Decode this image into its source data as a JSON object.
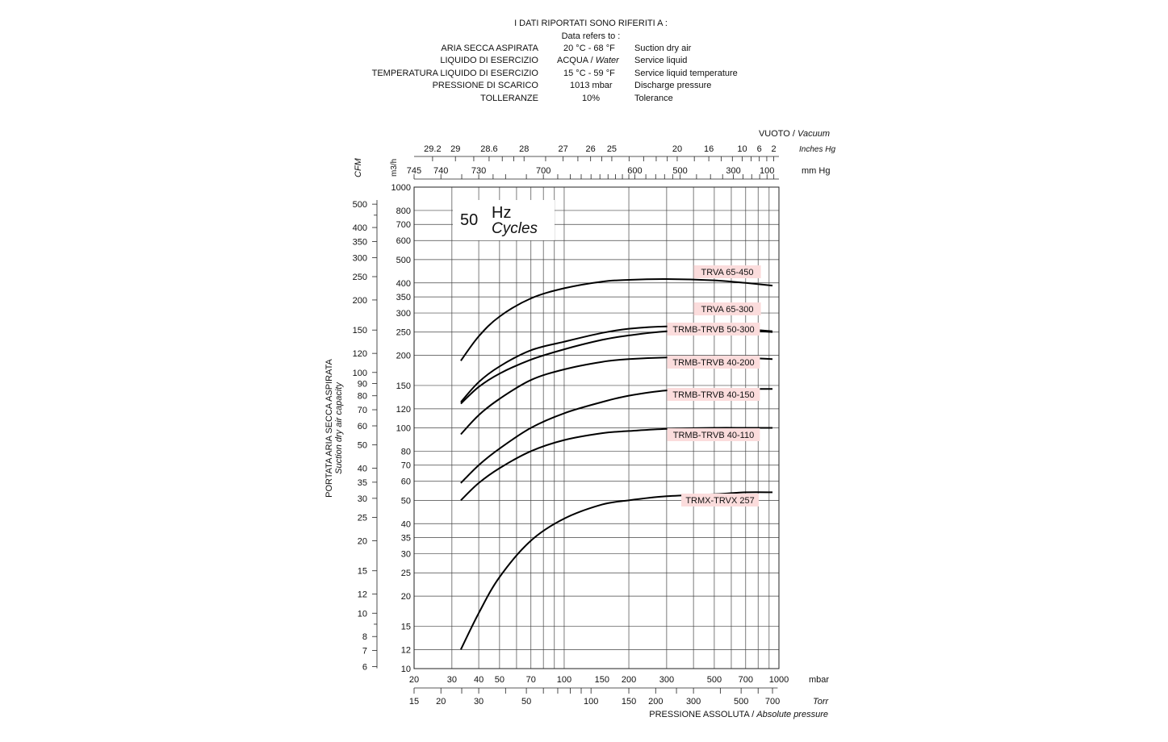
{
  "header": {
    "title": "I DATI RIPORTATI SONO RIFERITI A :",
    "subtitle": "Data refers to :",
    "rows": [
      {
        "it": "ARIA SECCA ASPIRATA",
        "value": "20 °C - 68 °F",
        "value_it": "",
        "en": "Suction dry air"
      },
      {
        "it": "LIQUIDO DI ESERCIZIO",
        "value": "ACQUA /",
        "value_it": "Water",
        "en": "Service liquid"
      },
      {
        "it": "TEMPERATURA LIQUIDO DI ESERCIZIO",
        "value": "15 °C - 59 °F",
        "value_it": "",
        "en": "Service liquid temperature"
      },
      {
        "it": "PRESSIONE DI SCARICO",
        "value": "1013 mbar",
        "value_it": "",
        "en": "Discharge pressure"
      },
      {
        "it": "TOLLERANZE",
        "value": "10%",
        "value_it": "",
        "en": "Tolerance"
      }
    ]
  },
  "chart_data": {
    "type": "line",
    "freq_number": "50",
    "freq_unit": "Hz",
    "freq_unit_en": "Cycles",
    "x_axis_mbar": {
      "unit": "mbar",
      "scale": "log",
      "range": [
        20,
        1000
      ],
      "labels": [
        "20",
        "30",
        "40",
        "50",
        "70",
        "100",
        "150",
        "200",
        "300",
        "500",
        "700",
        "1000"
      ]
    },
    "x_axis_torr": {
      "unit": "Torr",
      "labels": [
        "15",
        "20",
        "30",
        "50",
        "100",
        "150",
        "200",
        "300",
        "500",
        "700"
      ]
    },
    "x_title": "PRESSIONE ASSOLUTA /",
    "x_title_en": "Absolute pressure",
    "top_axis_mmhg": {
      "unit": "mm Hg",
      "labels": [
        "745",
        "740",
        "730",
        "700",
        "600",
        "500",
        "300",
        "100"
      ]
    },
    "top_axis_inhg": {
      "unit": "Inches Hg",
      "labels": [
        "29.2",
        "29",
        "28.6",
        "28",
        "27",
        "26",
        "25",
        "20",
        "16",
        "10",
        "6",
        "2"
      ]
    },
    "top_title": "VUOTO /",
    "top_title_en": "Vacuum",
    "y_axis_m3h": {
      "unit": "m3/h",
      "scale": "log",
      "range": [
        10,
        1000
      ],
      "labels": [
        "10",
        "12",
        "15",
        "20",
        "25",
        "30",
        "35",
        "40",
        "50",
        "60",
        "70",
        "80",
        "100",
        "120",
        "150",
        "200",
        "250",
        "300",
        "350",
        "400",
        "500",
        "600",
        "700",
        "800",
        "1000"
      ]
    },
    "y_axis_cfm": {
      "unit": "CFM",
      "labels": [
        "6",
        "7",
        "8",
        "10",
        "12",
        "15",
        "20",
        "25",
        "30",
        "35",
        "40",
        "50",
        "60",
        "70",
        "80",
        "90",
        "100",
        "120",
        "150",
        "200",
        "250",
        "300",
        "350",
        "400",
        "500"
      ]
    },
    "y_title": "PORTATA ARIA SECCA ASPIRATA",
    "y_title_en": "Suction dry air capacity",
    "grid": true,
    "series": [
      {
        "name": "TRVA 65-450",
        "x": [
          33,
          40,
          50,
          70,
          100,
          150,
          200,
          300,
          500,
          700,
          933
        ],
        "y": [
          190,
          240,
          290,
          345,
          380,
          405,
          412,
          415,
          410,
          400,
          390
        ]
      },
      {
        "name": "TRVA 65-300",
        "x": [
          33,
          40,
          50,
          70,
          100,
          150,
          200,
          300,
          500,
          700,
          933
        ],
        "y": [
          128,
          155,
          180,
          210,
          228,
          248,
          258,
          264,
          262,
          257,
          252
        ]
      },
      {
        "name": "TRMB-TRVB 50-300",
        "x": [
          33,
          40,
          50,
          70,
          100,
          150,
          200,
          300,
          500,
          700,
          933
        ],
        "y": [
          126,
          148,
          168,
          192,
          212,
          232,
          242,
          252,
          256,
          254,
          250
        ]
      },
      {
        "name": "TRMB-TRVB 40-200",
        "x": [
          33,
          40,
          50,
          70,
          100,
          150,
          200,
          300,
          500,
          700,
          933
        ],
        "y": [
          94,
          113,
          132,
          158,
          175,
          188,
          193,
          196,
          196,
          195,
          193
        ]
      },
      {
        "name": "TRMB-TRVB 40-150",
        "x": [
          33,
          40,
          50,
          70,
          100,
          150,
          200,
          300,
          500,
          700,
          933
        ],
        "y": [
          59,
          70,
          82,
          100,
          115,
          128,
          136,
          143,
          145,
          145,
          145
        ]
      },
      {
        "name": "TRMB-TRVB 40-110",
        "x": [
          33,
          40,
          50,
          70,
          100,
          150,
          200,
          300,
          500,
          700,
          933
        ],
        "y": [
          50,
          59,
          68,
          80,
          89,
          95,
          97,
          99,
          100,
          100,
          100
        ]
      },
      {
        "name": "TRMX-TRVX 257",
        "x": [
          33,
          40,
          50,
          70,
          100,
          150,
          200,
          300,
          500,
          700,
          933
        ],
        "y": [
          12,
          17,
          24,
          34,
          42,
          48,
          50,
          52,
          53,
          54,
          54
        ]
      }
    ]
  }
}
